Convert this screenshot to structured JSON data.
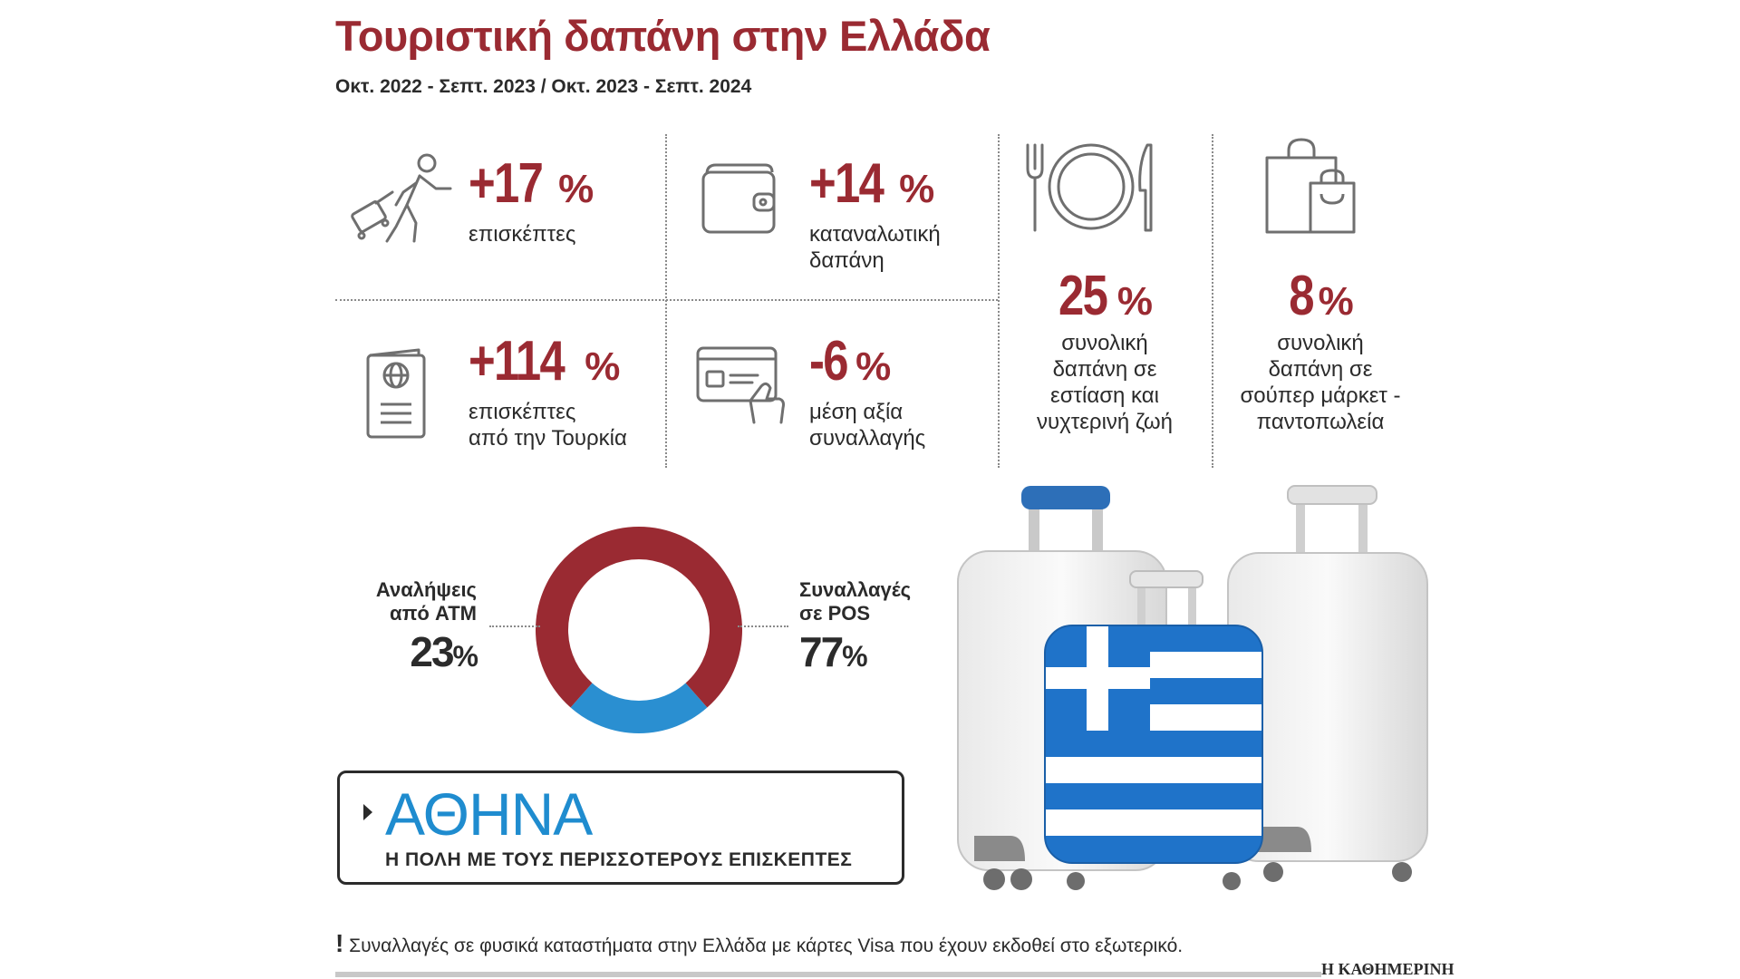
{
  "header": {
    "title": "Τουριστική δαπάνη στην Ελλάδα",
    "subtitle": "Οκτ. 2022 - Σεπτ. 2023 / Οκτ. 2023 - Σεπτ. 2024"
  },
  "stats": [
    {
      "value": "+17",
      "unit": "%",
      "label_lines": [
        "επισκέπτες"
      ],
      "icon": "traveler-with-suitcase-icon"
    },
    {
      "value": "+14",
      "unit": "%",
      "label_lines": [
        "καταναλωτική",
        "δαπάνη"
      ],
      "icon": "wallet-icon"
    },
    {
      "value": "+114",
      "unit": "%",
      "label_lines": [
        "επισκέπτες",
        "από την Τουρκία"
      ],
      "icon": "passport-icon"
    },
    {
      "value": "-6",
      "unit": "%",
      "label_lines": [
        "μέση αξία",
        "συναλλαγής"
      ],
      "icon": "credit-card-hand-icon"
    },
    {
      "value": "25",
      "unit": "%",
      "label_lines": [
        "συνολική",
        "δαπάνη σε",
        "εστίαση και",
        "νυχτερινή ζωή"
      ],
      "icon": "plate-fork-knife-icon"
    },
    {
      "value": "8",
      "unit": "%",
      "label_lines": [
        "συνολική",
        "δαπάνη σε",
        "σούπερ μάρκετ -",
        "παντοπωλεία"
      ],
      "icon": "shopping-bags-icon"
    }
  ],
  "chart_data": {
    "type": "pie",
    "style": "donut",
    "slices": [
      {
        "label_lines": [
          "Αναλήψεις",
          "από ATM"
        ],
        "value": 23,
        "display": "23",
        "unit": "%",
        "color": "#2a8fd1"
      },
      {
        "label_lines": [
          "Συναλλαγές",
          "σε POS"
        ],
        "value": 77,
        "display": "77",
        "unit": "%",
        "color": "#9a2a32"
      }
    ]
  },
  "city_box": {
    "name": "ΑΘΗΝΑ",
    "description": "Η ΠΟΛΗ ΜΕ ΤΟΥΣ ΠΕΡΙΣΣΟΤΕΡΟΥΣ ΕΠΙΣΚΕΠΤΕΣ"
  },
  "footnote": {
    "mark": "!",
    "text": "Συναλλαγές σε φυσικά καταστήματα στην Ελλάδα με κάρτες Visa που έχουν εκδοθεί στο εξωτερικό."
  },
  "brand": "Η ΚΑΘΗΜΕΡΙΝΗ",
  "colors": {
    "accent": "#9a2a32",
    "blue": "#2a8fd1",
    "text": "#2b2b2b",
    "icon_gray": "#6f6f6f"
  }
}
